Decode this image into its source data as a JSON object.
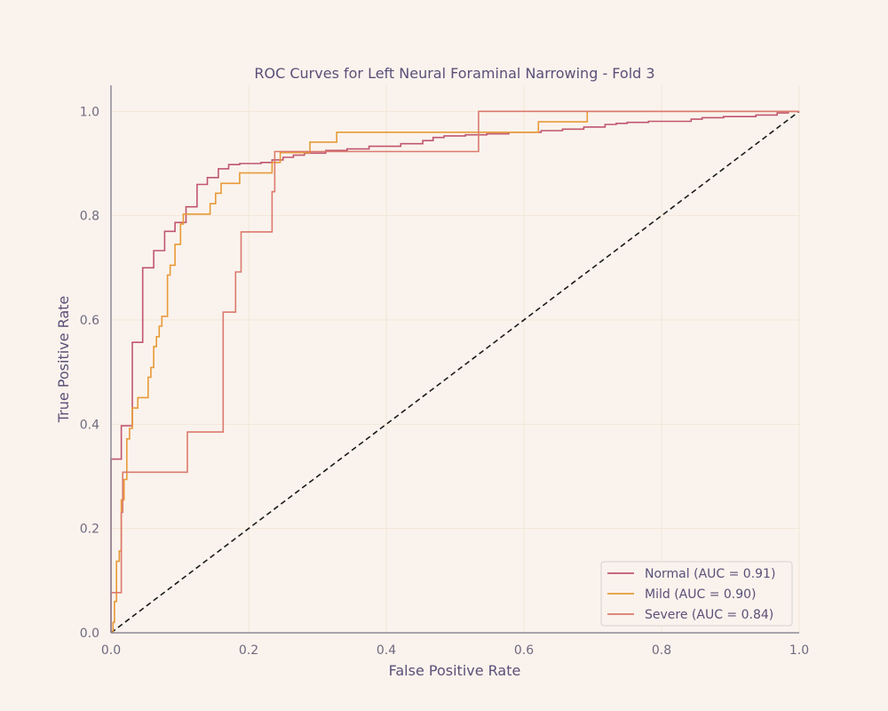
{
  "colors": {
    "background": "#FAF3ED",
    "grid": "#F3E6D8",
    "axis": "#8E8A9A",
    "text": "#5A5078",
    "tick_text": "#6E6A80",
    "diagonal": "#1A1A1A",
    "legend_bg": "#FAF3ED",
    "legend_border": "#D6D2CE"
  },
  "chart_data": {
    "type": "line",
    "title": "ROC Curves for Left Neural Foraminal Narrowing - Fold 3",
    "xlabel": "False Positive Rate",
    "ylabel": "True Positive Rate",
    "xlim": [
      0,
      1
    ],
    "ylim": [
      0,
      1.05
    ],
    "x_ticks": [
      "0.0",
      "0.2",
      "0.4",
      "0.6",
      "0.8",
      "1.0"
    ],
    "y_ticks": [
      "0.0",
      "0.2",
      "0.4",
      "0.6",
      "0.8",
      "1.0"
    ],
    "grid": true,
    "legend_position": "bottom-right",
    "diagonal": {
      "style": "dashed",
      "points": [
        [
          0,
          0
        ],
        [
          1,
          1
        ]
      ]
    },
    "series": [
      {
        "name": "Normal (AUC = 0.91)",
        "color": "#C0566E",
        "points": [
          [
            0,
            0
          ],
          [
            0,
            0.333
          ],
          [
            0.015,
            0.333
          ],
          [
            0.015,
            0.397
          ],
          [
            0.031,
            0.397
          ],
          [
            0.031,
            0.557
          ],
          [
            0.046,
            0.557
          ],
          [
            0.046,
            0.7
          ],
          [
            0.062,
            0.7
          ],
          [
            0.062,
            0.733
          ],
          [
            0.078,
            0.733
          ],
          [
            0.078,
            0.77
          ],
          [
            0.093,
            0.77
          ],
          [
            0.093,
            0.787
          ],
          [
            0.109,
            0.787
          ],
          [
            0.109,
            0.817
          ],
          [
            0.125,
            0.817
          ],
          [
            0.125,
            0.86
          ],
          [
            0.14,
            0.86
          ],
          [
            0.14,
            0.873
          ],
          [
            0.156,
            0.873
          ],
          [
            0.156,
            0.89
          ],
          [
            0.171,
            0.89
          ],
          [
            0.171,
            0.898
          ],
          [
            0.187,
            0.898
          ],
          [
            0.187,
            0.9
          ],
          [
            0.218,
            0.9
          ],
          [
            0.218,
            0.902
          ],
          [
            0.234,
            0.902
          ],
          [
            0.234,
            0.907
          ],
          [
            0.25,
            0.907
          ],
          [
            0.25,
            0.912
          ],
          [
            0.265,
            0.912
          ],
          [
            0.265,
            0.916
          ],
          [
            0.281,
            0.916
          ],
          [
            0.281,
            0.92
          ],
          [
            0.312,
            0.92
          ],
          [
            0.312,
            0.925
          ],
          [
            0.343,
            0.925
          ],
          [
            0.343,
            0.928
          ],
          [
            0.375,
            0.928
          ],
          [
            0.375,
            0.933
          ],
          [
            0.421,
            0.933
          ],
          [
            0.421,
            0.938
          ],
          [
            0.453,
            0.938
          ],
          [
            0.453,
            0.944
          ],
          [
            0.468,
            0.944
          ],
          [
            0.468,
            0.95
          ],
          [
            0.484,
            0.95
          ],
          [
            0.484,
            0.953
          ],
          [
            0.515,
            0.953
          ],
          [
            0.515,
            0.955
          ],
          [
            0.546,
            0.955
          ],
          [
            0.546,
            0.957
          ],
          [
            0.578,
            0.957
          ],
          [
            0.578,
            0.96
          ],
          [
            0.625,
            0.96
          ],
          [
            0.625,
            0.963
          ],
          [
            0.656,
            0.963
          ],
          [
            0.656,
            0.966
          ],
          [
            0.687,
            0.966
          ],
          [
            0.687,
            0.97
          ],
          [
            0.718,
            0.97
          ],
          [
            0.718,
            0.975
          ],
          [
            0.734,
            0.975
          ],
          [
            0.734,
            0.977
          ],
          [
            0.75,
            0.977
          ],
          [
            0.75,
            0.979
          ],
          [
            0.781,
            0.979
          ],
          [
            0.781,
            0.981
          ],
          [
            0.843,
            0.981
          ],
          [
            0.843,
            0.985
          ],
          [
            0.859,
            0.985
          ],
          [
            0.859,
            0.988
          ],
          [
            0.89,
            0.988
          ],
          [
            0.89,
            0.99
          ],
          [
            0.937,
            0.99
          ],
          [
            0.937,
            0.993
          ],
          [
            0.968,
            0.993
          ],
          [
            0.968,
            0.997
          ],
          [
            0.984,
            0.997
          ],
          [
            0.984,
            1.0
          ],
          [
            1,
            1.0
          ]
        ]
      },
      {
        "name": "Mild (AUC = 0.90)",
        "color": "#E89A38",
        "points": [
          [
            0,
            0
          ],
          [
            0.003,
            0
          ],
          [
            0.003,
            0.02
          ],
          [
            0.005,
            0.02
          ],
          [
            0.005,
            0.06
          ],
          [
            0.008,
            0.06
          ],
          [
            0.008,
            0.137
          ],
          [
            0.012,
            0.137
          ],
          [
            0.012,
            0.157
          ],
          [
            0.015,
            0.157
          ],
          [
            0.015,
            0.255
          ],
          [
            0.019,
            0.255
          ],
          [
            0.019,
            0.294
          ],
          [
            0.023,
            0.294
          ],
          [
            0.023,
            0.372
          ],
          [
            0.027,
            0.372
          ],
          [
            0.027,
            0.392
          ],
          [
            0.031,
            0.392
          ],
          [
            0.031,
            0.431
          ],
          [
            0.039,
            0.431
          ],
          [
            0.039,
            0.451
          ],
          [
            0.054,
            0.451
          ],
          [
            0.054,
            0.49
          ],
          [
            0.058,
            0.49
          ],
          [
            0.058,
            0.509
          ],
          [
            0.062,
            0.509
          ],
          [
            0.062,
            0.549
          ],
          [
            0.066,
            0.549
          ],
          [
            0.066,
            0.568
          ],
          [
            0.07,
            0.568
          ],
          [
            0.07,
            0.588
          ],
          [
            0.074,
            0.588
          ],
          [
            0.074,
            0.607
          ],
          [
            0.082,
            0.607
          ],
          [
            0.082,
            0.686
          ],
          [
            0.086,
            0.686
          ],
          [
            0.086,
            0.705
          ],
          [
            0.093,
            0.705
          ],
          [
            0.093,
            0.745
          ],
          [
            0.101,
            0.745
          ],
          [
            0.101,
            0.784
          ],
          [
            0.105,
            0.784
          ],
          [
            0.105,
            0.803
          ],
          [
            0.144,
            0.803
          ],
          [
            0.144,
            0.823
          ],
          [
            0.152,
            0.823
          ],
          [
            0.152,
            0.843
          ],
          [
            0.16,
            0.843
          ],
          [
            0.16,
            0.862
          ],
          [
            0.187,
            0.862
          ],
          [
            0.187,
            0.882
          ],
          [
            0.234,
            0.882
          ],
          [
            0.234,
            0.902
          ],
          [
            0.246,
            0.902
          ],
          [
            0.246,
            0.921
          ],
          [
            0.289,
            0.921
          ],
          [
            0.289,
            0.941
          ],
          [
            0.328,
            0.941
          ],
          [
            0.328,
            0.96
          ],
          [
            0.621,
            0.96
          ],
          [
            0.621,
            0.98
          ],
          [
            0.692,
            0.98
          ],
          [
            0.692,
            1.0
          ],
          [
            1,
            1.0
          ]
        ]
      },
      {
        "name": "Severe (AUC = 0.84)",
        "color": "#DB7A6E",
        "points": [
          [
            0,
            0
          ],
          [
            0,
            0.077
          ],
          [
            0.015,
            0.077
          ],
          [
            0.015,
            0.231
          ],
          [
            0.017,
            0.231
          ],
          [
            0.017,
            0.308
          ],
          [
            0.111,
            0.308
          ],
          [
            0.111,
            0.385
          ],
          [
            0.163,
            0.385
          ],
          [
            0.163,
            0.615
          ],
          [
            0.181,
            0.615
          ],
          [
            0.181,
            0.692
          ],
          [
            0.189,
            0.692
          ],
          [
            0.189,
            0.769
          ],
          [
            0.234,
            0.769
          ],
          [
            0.234,
            0.846
          ],
          [
            0.238,
            0.846
          ],
          [
            0.238,
            0.923
          ],
          [
            0.534,
            0.923
          ],
          [
            0.534,
            1.0
          ],
          [
            1,
            1.0
          ]
        ]
      }
    ]
  }
}
